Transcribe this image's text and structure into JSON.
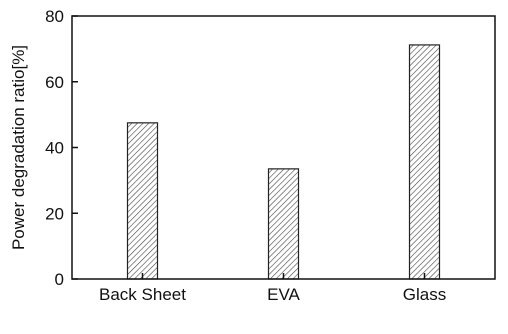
{
  "chart_data": {
    "type": "bar",
    "categories": [
      "Back Sheet",
      "EVA",
      "Glass"
    ],
    "values": [
      47.5,
      33.5,
      71.2
    ],
    "title": "",
    "xlabel": "",
    "ylabel": "Power degradation ratio[%]",
    "ylim": [
      0,
      80
    ],
    "yticks": [
      0,
      20,
      40,
      60,
      80
    ],
    "grid": false,
    "legend": "none",
    "bar_fill": "hatched",
    "colors": {
      "axis": "#111111",
      "bar_edge": "#222222",
      "hatch": "#444444",
      "background": "#ffffff"
    }
  }
}
